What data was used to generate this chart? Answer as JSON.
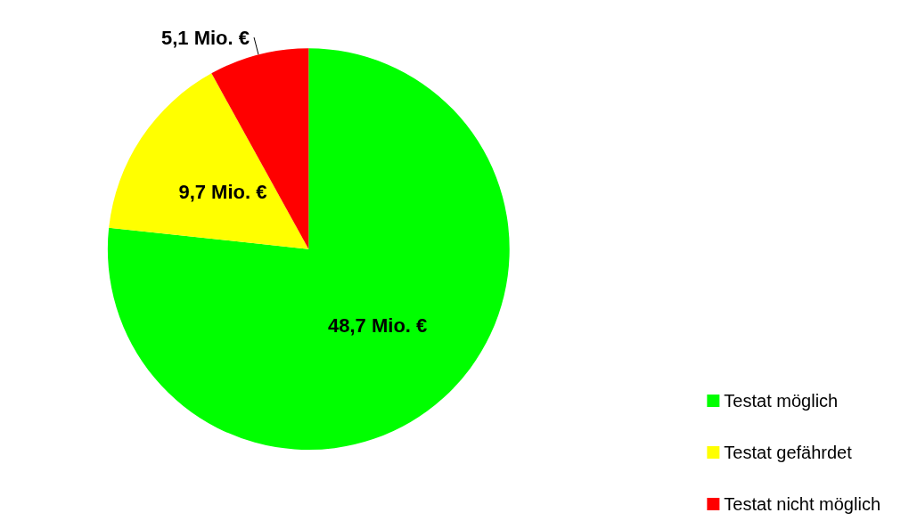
{
  "chart_data": {
    "type": "pie",
    "categories": [
      "Testat möglich",
      "Testat gefährdet",
      "Testat nicht möglich"
    ],
    "values": [
      48.7,
      9.7,
      5.1
    ],
    "colors": [
      "#00ff00",
      "#ffff00",
      "#ff0000"
    ],
    "value_labels": [
      "48,7 Mio. €",
      "9,7 Mio. €",
      "5,1 Mio. €"
    ],
    "legend": "bottom right"
  }
}
